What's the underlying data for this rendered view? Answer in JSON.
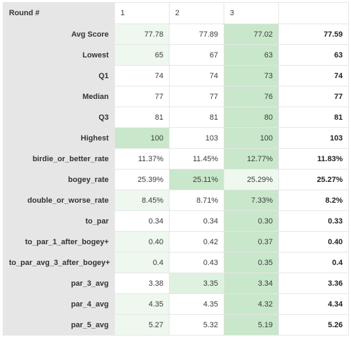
{
  "header": {
    "corner_label": "Round #",
    "columns": [
      "1",
      "2",
      "3",
      ""
    ]
  },
  "rows": [
    {
      "label": "Avg Score",
      "values": [
        "77.78",
        "77.89",
        "77.02"
      ],
      "total": "77.59",
      "shade": [
        "h3",
        "",
        "h1"
      ]
    },
    {
      "label": "Lowest",
      "values": [
        "65",
        "67",
        "63"
      ],
      "total": "63",
      "shade": [
        "h3",
        "",
        "h1"
      ]
    },
    {
      "label": "Q1",
      "values": [
        "74",
        "74",
        "73"
      ],
      "total": "74",
      "shade": [
        "",
        "",
        "h1"
      ]
    },
    {
      "label": "Median",
      "values": [
        "77",
        "77",
        "76"
      ],
      "total": "77",
      "shade": [
        "",
        "",
        "h1"
      ]
    },
    {
      "label": "Q3",
      "values": [
        "81",
        "81",
        "80"
      ],
      "total": "81",
      "shade": [
        "",
        "",
        "h1"
      ]
    },
    {
      "label": "Highest",
      "values": [
        "100",
        "103",
        "100"
      ],
      "total": "103",
      "shade": [
        "h1",
        "",
        "h1"
      ]
    },
    {
      "label": "birdie_or_better_rate",
      "values": [
        "11.37%",
        "11.45%",
        "12.77%"
      ],
      "total": "11.83%",
      "shade": [
        "",
        "",
        "h1"
      ]
    },
    {
      "label": "bogey_rate",
      "values": [
        "25.39%",
        "25.11%",
        "25.29%"
      ],
      "total": "25.27%",
      "shade": [
        "",
        "h1",
        "h3"
      ]
    },
    {
      "label": "double_or_worse_rate",
      "values": [
        "8.45%",
        "8.71%",
        "7.33%"
      ],
      "total": "8.2%",
      "shade": [
        "h3",
        "",
        "h1"
      ]
    },
    {
      "label": "to_par",
      "values": [
        "0.34",
        "0.34",
        "0.30"
      ],
      "total": "0.33",
      "shade": [
        "",
        "",
        "h1"
      ]
    },
    {
      "label": "to_par_1_after_bogey+",
      "values": [
        "0.40",
        "0.42",
        "0.37"
      ],
      "total": "0.40",
      "shade": [
        "h3",
        "",
        "h1"
      ]
    },
    {
      "label": "to_par_avg_3_after_bogey+",
      "values": [
        "0.4",
        "0.43",
        "0.35"
      ],
      "total": "0.4",
      "shade": [
        "h3",
        "",
        "h1"
      ]
    },
    {
      "label": "par_3_avg",
      "values": [
        "3.38",
        "3.35",
        "3.34"
      ],
      "total": "3.36",
      "shade": [
        "",
        "h2",
        "h1"
      ]
    },
    {
      "label": "par_4_avg",
      "values": [
        "4.35",
        "4.35",
        "4.32"
      ],
      "total": "4.34",
      "shade": [
        "h3",
        "",
        "h1"
      ]
    },
    {
      "label": "par_5_avg",
      "values": [
        "5.27",
        "5.32",
        "5.19"
      ],
      "total": "5.26",
      "shade": [
        "h3",
        "",
        "h1"
      ]
    }
  ]
}
